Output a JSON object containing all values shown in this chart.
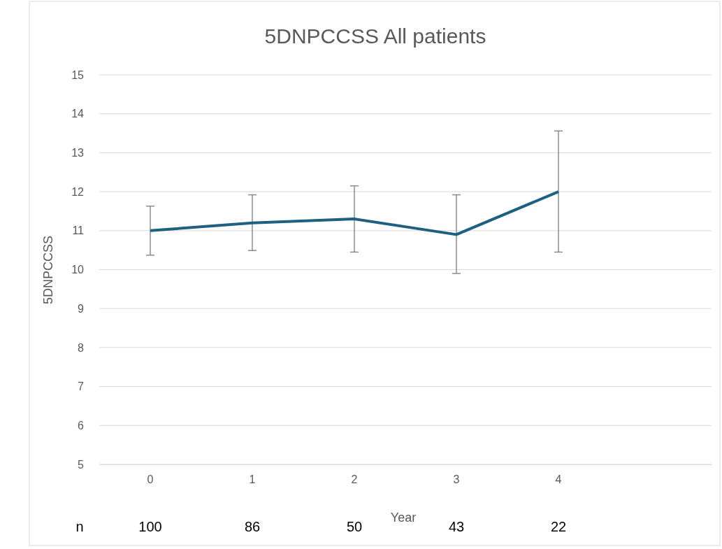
{
  "chart_data": {
    "type": "line",
    "title": "5DNPCCSS All patients",
    "xlabel": "Year",
    "ylabel": "5DNPCCSS",
    "categories": [
      "0",
      "1",
      "2",
      "3",
      "4",
      null
    ],
    "series": [
      {
        "color": "#1f5f80",
        "values": [
          11.0,
          11.2,
          11.3,
          10.9,
          12.0,
          null
        ],
        "errors": [
          [
            10.37,
            11.63
          ],
          [
            10.49,
            11.92
          ],
          [
            10.45,
            12.15
          ],
          [
            9.9,
            11.92
          ],
          [
            10.45,
            13.56
          ],
          null
        ]
      }
    ],
    "ylim": [
      5,
      15
    ],
    "yticks": [
      5,
      6,
      7,
      8,
      9,
      10,
      11,
      12,
      13,
      14,
      15
    ],
    "grid": "y",
    "marker": "none",
    "line_style": "solid",
    "annotations": [
      "n",
      "100",
      "86",
      "50",
      "43",
      "22"
    ]
  }
}
